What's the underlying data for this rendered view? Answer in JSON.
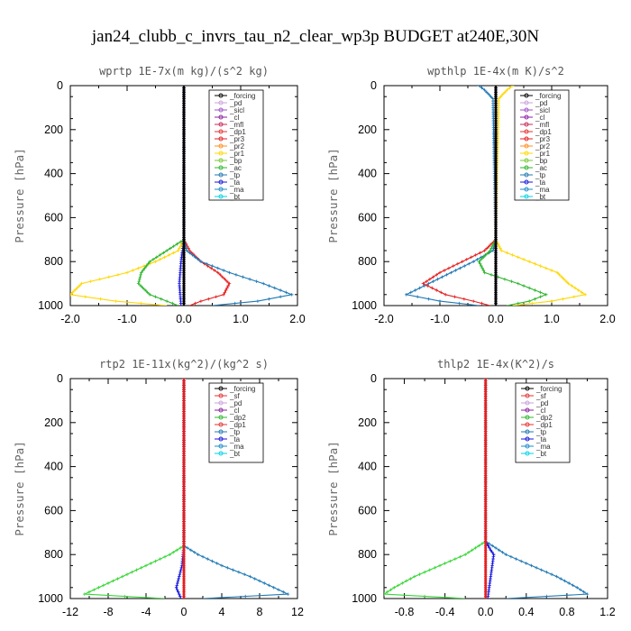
{
  "figure_title": "jan24_clubb_c_invrs_tau_n2_clear_wp3p  BUDGET at240E,30N",
  "chart_data": [
    {
      "type": "line",
      "title": "wprtp  1E-7x(m kg)/(s^2 kg)",
      "ylabel": "Pressure [hPa]",
      "xlim": [
        -2.0,
        2.0
      ],
      "ylim": [
        1000,
        0
      ],
      "xticks": [
        "-2.0",
        "-1.0",
        "0.0",
        "1.0",
        "2.0"
      ],
      "xtick_values": [
        -2,
        -1,
        0,
        1,
        2
      ],
      "yticks": [
        "0",
        "200",
        "400",
        "600",
        "800",
        "1000"
      ],
      "ytick_values": [
        0,
        200,
        400,
        600,
        800,
        1000
      ],
      "legend": [
        "_forcing",
        "_pd",
        "_sicl",
        "_cl",
        "_mfl",
        "_dp1",
        "_pr3",
        "_pr2",
        "_pr1",
        "_bp",
        "_ac",
        "_tp",
        "_ta",
        "_ma",
        "_bt"
      ],
      "series": [
        {
          "name": "_pr1",
          "color": "#ffd700",
          "p": [
            0,
            700,
            750,
            800,
            850,
            900,
            950,
            980,
            1000
          ],
          "v": [
            0,
            0,
            -0.1,
            -0.5,
            -1.0,
            -1.8,
            -2.0,
            -1.2,
            -0.3
          ]
        },
        {
          "name": "_ac",
          "color": "#2db52d",
          "p": [
            0,
            700,
            750,
            800,
            850,
            900,
            950,
            980,
            1000
          ],
          "v": [
            0,
            0,
            -0.3,
            -0.6,
            -0.75,
            -0.8,
            -0.6,
            -0.3,
            -0.1
          ]
        },
        {
          "name": "_pr3",
          "color": "#e61e1e",
          "p": [
            0,
            700,
            750,
            800,
            850,
            900,
            950,
            980,
            1000
          ],
          "v": [
            0,
            0,
            0.1,
            0.3,
            0.6,
            0.8,
            0.7,
            0.3,
            0.1
          ]
        },
        {
          "name": "_tp",
          "color": "#1e78b4",
          "p": [
            0,
            700,
            750,
            800,
            850,
            900,
            950,
            980,
            1000
          ],
          "v": [
            0,
            0,
            0.05,
            0.3,
            0.8,
            1.4,
            1.9,
            1.3,
            0.5
          ]
        },
        {
          "name": "_ta",
          "color": "#1414dc",
          "p": [
            0,
            700,
            800,
            900,
            1000
          ],
          "v": [
            0,
            0,
            -0.05,
            -0.08,
            -0.05
          ]
        },
        {
          "name": "_pd",
          "color": "#c8a0dc",
          "p": [
            0,
            1000
          ],
          "v": [
            0,
            0
          ]
        },
        {
          "name": "_forcing",
          "color": "#000000",
          "p": [
            0,
            1000
          ],
          "v": [
            0,
            0
          ]
        }
      ]
    },
    {
      "type": "line",
      "title": "wpthlp  1E-4x(m K)/s^2",
      "ylabel": "Pressure [hPa]",
      "xlim": [
        -2.0,
        2.0
      ],
      "ylim": [
        1000,
        0
      ],
      "xticks": [
        "-2.0",
        "-1.0",
        "0.0",
        "1.0",
        "2.0"
      ],
      "xtick_values": [
        -2,
        -1,
        0,
        1,
        2
      ],
      "yticks": [
        "0",
        "200",
        "400",
        "600",
        "800",
        "1000"
      ],
      "ytick_values": [
        0,
        200,
        400,
        600,
        800,
        1000
      ],
      "legend": [
        "_forcing",
        "_pd",
        "_sicl",
        "_cl",
        "_mfl",
        "_dp1",
        "_pr3",
        "_pr2",
        "_pr1",
        "_bp",
        "_ac",
        "_tp",
        "_ta",
        "_ma",
        "_bt"
      ],
      "series": [
        {
          "name": "_pr1",
          "color": "#ffd700",
          "p": [
            0,
            20,
            60,
            700,
            750,
            800,
            850,
            900,
            950,
            980,
            1000
          ],
          "v": [
            0.3,
            0.2,
            0.05,
            0,
            0.1,
            0.6,
            1.1,
            1.3,
            1.6,
            1.0,
            0.3
          ]
        },
        {
          "name": "_tp",
          "color": "#1e78b4",
          "p": [
            0,
            20,
            60,
            700,
            750,
            800,
            850,
            900,
            950,
            980,
            1000
          ],
          "v": [
            -0.3,
            -0.2,
            -0.05,
            0,
            -0.05,
            -0.4,
            -0.8,
            -1.2,
            -1.6,
            -1.0,
            -0.3
          ]
        },
        {
          "name": "_pr3",
          "color": "#e61e1e",
          "p": [
            0,
            700,
            750,
            800,
            850,
            900,
            950,
            980,
            1000
          ],
          "v": [
            0,
            0,
            -0.2,
            -0.6,
            -1.0,
            -1.3,
            -0.9,
            -0.4,
            -0.1
          ]
        },
        {
          "name": "_ac",
          "color": "#2db52d",
          "p": [
            0,
            700,
            750,
            800,
            850,
            900,
            950,
            980,
            1000
          ],
          "v": [
            0,
            0,
            -0.1,
            -0.3,
            -0.2,
            0.4,
            0.9,
            0.6,
            0.2
          ]
        },
        {
          "name": "_pd",
          "color": "#c8a0dc",
          "p": [
            0,
            1000
          ],
          "v": [
            0,
            0
          ]
        },
        {
          "name": "_forcing",
          "color": "#000000",
          "p": [
            0,
            1000
          ],
          "v": [
            0,
            0
          ]
        }
      ]
    },
    {
      "type": "line",
      "title": "rtp2  1E-11x(kg^2)/(kg^2 s)",
      "ylabel": "Pressure [hPa]",
      "xlim": [
        -12,
        12
      ],
      "ylim": [
        1000,
        0
      ],
      "xticks": [
        "-12",
        "-8",
        "-4",
        "0",
        "4",
        "8",
        "12"
      ],
      "xtick_values": [
        -12,
        -8,
        -4,
        0,
        4,
        8,
        12
      ],
      "yticks": [
        "0",
        "200",
        "400",
        "600",
        "800",
        "1000"
      ],
      "ytick_values": [
        0,
        200,
        400,
        600,
        800,
        1000
      ],
      "legend": [
        "_forcing",
        "_sf",
        "_pd",
        "_cl",
        "_dp2",
        "_dp1",
        "_tp",
        "_ta",
        "_ma",
        "_bt"
      ],
      "series": [
        {
          "name": "_dp1",
          "color": "#36d636",
          "p": [
            0,
            760,
            800,
            850,
            900,
            950,
            980,
            1000
          ],
          "v": [
            0,
            0,
            -1.5,
            -4.0,
            -6.5,
            -9.0,
            -10.5,
            -2.0
          ]
        },
        {
          "name": "_tp",
          "color": "#1e78b4",
          "p": [
            0,
            760,
            800,
            850,
            900,
            950,
            980,
            1000
          ],
          "v": [
            0,
            0,
            1.5,
            4.0,
            7.0,
            9.5,
            11.0,
            2.0
          ]
        },
        {
          "name": "_ta",
          "color": "#1414dc",
          "p": [
            0,
            760,
            850,
            900,
            950,
            1000
          ],
          "v": [
            0,
            0,
            -0.2,
            -0.5,
            -0.8,
            -0.3
          ]
        },
        {
          "name": "_forcing",
          "color": "#e61e1e",
          "p": [
            0,
            1000
          ],
          "v": [
            0,
            0
          ]
        }
      ]
    },
    {
      "type": "line",
      "title": "thlp2  1E-4x(K^2)/s",
      "ylabel": "Pressure [hPa]",
      "xlim": [
        -1.0,
        1.2
      ],
      "ylim": [
        1000,
        0
      ],
      "xticks": [
        "-0.8",
        "-0.4",
        "0.0",
        "0.4",
        "0.8",
        "1.2"
      ],
      "xtick_values": [
        -0.8,
        -0.4,
        0,
        0.4,
        0.8,
        1.2
      ],
      "yticks": [
        "0",
        "200",
        "400",
        "600",
        "800",
        "1000"
      ],
      "ytick_values": [
        0,
        200,
        400,
        600,
        800,
        1000
      ],
      "legend": [
        "_forcing",
        "_sf",
        "_pd",
        "_cl",
        "_dp2",
        "_dp1",
        "_tp",
        "_ta",
        "_ma",
        "_bt"
      ],
      "series": [
        {
          "name": "_dp1",
          "color": "#36d636",
          "p": [
            0,
            740,
            800,
            850,
            900,
            950,
            980,
            1000
          ],
          "v": [
            0,
            0,
            -0.2,
            -0.45,
            -0.7,
            -0.9,
            -1.0,
            -0.2
          ]
        },
        {
          "name": "_tp",
          "color": "#1e78b4",
          "p": [
            0,
            740,
            800,
            850,
            900,
            950,
            980,
            1000
          ],
          "v": [
            0,
            0,
            0.2,
            0.45,
            0.7,
            0.9,
            1.0,
            0.2
          ]
        },
        {
          "name": "_ta",
          "color": "#1414dc",
          "p": [
            0,
            740,
            780,
            800,
            1000
          ],
          "v": [
            0,
            0,
            0.05,
            0.08,
            0.02
          ]
        },
        {
          "name": "_forcing",
          "color": "#e61e1e",
          "p": [
            0,
            1000
          ],
          "v": [
            0,
            0
          ]
        }
      ]
    }
  ]
}
